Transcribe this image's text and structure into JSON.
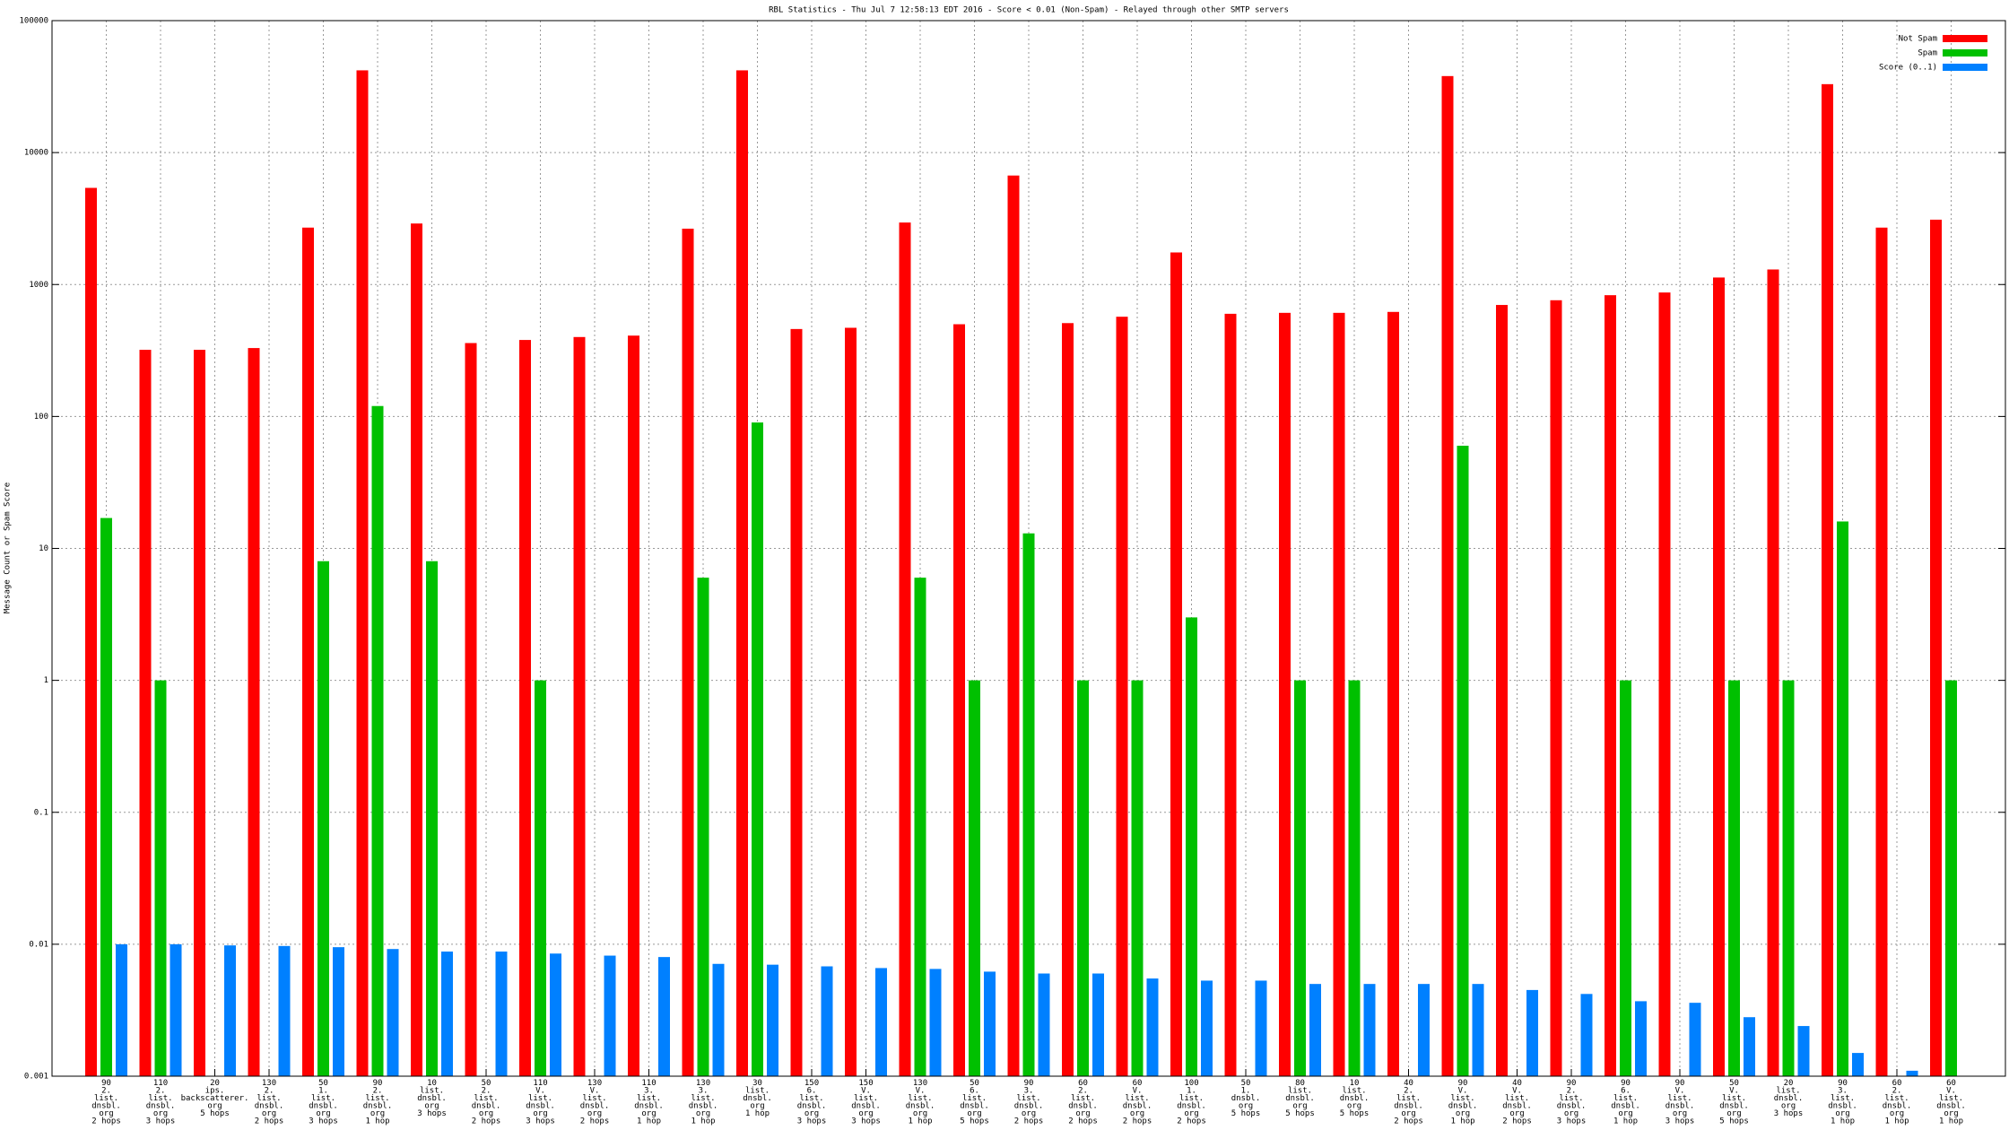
{
  "chart_data": {
    "type": "bar",
    "title": "RBL Statistics - Thu Jul  7 12:58:13 EDT 2016 - Score < 0.01 (Non-Spam) - Relayed through other SMTP servers",
    "y_label": "Message Count or Spam Score",
    "log_scale": true,
    "grid": true,
    "legend_position": "top-right",
    "ylim": [
      0.001,
      100000
    ],
    "yticks": [
      0.001,
      0.01,
      0.1,
      1,
      10,
      100,
      1000,
      10000,
      100000
    ],
    "categories": [
      [
        "90",
        "2.",
        "list.",
        "dnsbl.",
        "org",
        "2 hops"
      ],
      [
        "110",
        "2.",
        "list.",
        "dnsbl.",
        "org",
        "3 hops"
      ],
      [
        "20",
        "ips.",
        "backscatterer.",
        "org",
        "5 hops"
      ],
      [
        "130",
        "2.",
        "list.",
        "dnsbl.",
        "org",
        "2 hops"
      ],
      [
        "50",
        "1.",
        "list.",
        "dnsbl.",
        "org",
        "3 hops"
      ],
      [
        "90",
        "2.",
        "list.",
        "dnsbl.",
        "org",
        "1 hop"
      ],
      [
        "10",
        "list.",
        "dnsbl.",
        "org",
        "3 hops"
      ],
      [
        "50",
        "2.",
        "list.",
        "dnsbl.",
        "org",
        "2 hops"
      ],
      [
        "110",
        "V.",
        "list.",
        "dnsbl.",
        "org",
        "3 hops"
      ],
      [
        "130",
        "V.",
        "list.",
        "dnsbl.",
        "org",
        "2 hops"
      ],
      [
        "110",
        "3.",
        "list.",
        "dnsbl.",
        "org",
        "1 hop"
      ],
      [
        "130",
        "3.",
        "list.",
        "dnsbl.",
        "org",
        "1 hop"
      ],
      [
        "30",
        "list.",
        "dnsbl.",
        "org",
        "1 hop"
      ],
      [
        "150",
        "6.",
        "list.",
        "dnsbl.",
        "org",
        "3 hops"
      ],
      [
        "150",
        "V.",
        "list.",
        "dnsbl.",
        "org",
        "3 hops"
      ],
      [
        "130",
        "V.",
        "list.",
        "dnsbl.",
        "org",
        "1 hop"
      ],
      [
        "50",
        "6.",
        "list.",
        "dnsbl.",
        "org",
        "5 hops"
      ],
      [
        "90",
        "3.",
        "list.",
        "dnsbl.",
        "org",
        "2 hops"
      ],
      [
        "60",
        "2.",
        "list.",
        "dnsbl.",
        "org",
        "2 hops"
      ],
      [
        "60",
        "V.",
        "list.",
        "dnsbl.",
        "org",
        "2 hops"
      ],
      [
        "100",
        "1.",
        "list.",
        "dnsbl.",
        "org",
        "2 hops"
      ],
      [
        "50",
        "1.",
        "dnsbl.",
        "org",
        "5 hops"
      ],
      [
        "80",
        "list.",
        "dnsbl.",
        "org",
        "5 hops"
      ],
      [
        "10",
        "list.",
        "dnsbl.",
        "org",
        "5 hops"
      ],
      [
        "40",
        "2.",
        "list.",
        "dnsbl.",
        "org",
        "2 hops"
      ],
      [
        "90",
        "V.",
        "list.",
        "dnsbl.",
        "org",
        "1 hop"
      ],
      [
        "40",
        "V.",
        "list.",
        "dnsbl.",
        "org",
        "2 hops"
      ],
      [
        "90",
        "2.",
        "list.",
        "dnsbl.",
        "org",
        "3 hops"
      ],
      [
        "90",
        "6.",
        "list.",
        "dnsbl.",
        "org",
        "1 hop"
      ],
      [
        "90",
        "V.",
        "list.",
        "dnsbl.",
        "org",
        "3 hops"
      ],
      [
        "50",
        "V.",
        "list.",
        "dnsbl.",
        "org",
        "5 hops"
      ],
      [
        "20",
        "list.",
        "dnsbl.",
        "org",
        "3 hops"
      ],
      [
        "90",
        "3.",
        "list.",
        "dnsbl.",
        "org",
        "1 hop"
      ],
      [
        "60",
        "2.",
        "list.",
        "dnsbl.",
        "org",
        "1 hop"
      ],
      [
        "60",
        "V.",
        "list.",
        "dnsbl.",
        "org",
        "1 hop"
      ]
    ],
    "series": [
      {
        "name": "Not Spam",
        "color": "#ff0000",
        "values": [
          5400,
          320,
          320,
          330,
          2700,
          42000,
          2900,
          360,
          380,
          400,
          410,
          2650,
          42000,
          460,
          470,
          2950,
          500,
          6700,
          510,
          570,
          1750,
          600,
          610,
          610,
          620,
          38000,
          700,
          760,
          830,
          870,
          1130,
          1300,
          33000,
          2700,
          3100
        ]
      },
      {
        "name": "Spam",
        "color": "#00c000",
        "values": [
          17,
          1,
          null,
          null,
          8,
          120,
          8,
          null,
          1,
          null,
          null,
          6,
          90,
          null,
          null,
          6,
          1,
          13,
          1,
          1,
          3,
          null,
          1,
          1,
          null,
          60,
          null,
          null,
          1,
          null,
          1,
          1,
          16,
          null,
          1
        ]
      },
      {
        "name": "Score (0..1)",
        "color": "#0080ff",
        "values": [
          0.01,
          0.01,
          0.0098,
          0.0097,
          0.0095,
          0.0092,
          0.0088,
          0.0088,
          0.0085,
          0.0082,
          0.008,
          0.0071,
          0.007,
          0.0068,
          0.0066,
          0.0065,
          0.0062,
          0.006,
          0.006,
          0.0055,
          0.0053,
          0.0053,
          0.005,
          0.005,
          0.005,
          0.005,
          0.0045,
          0.0042,
          0.0037,
          0.0036,
          0.0028,
          0.0024,
          0.0015,
          0.0011,
          null
        ]
      }
    ]
  }
}
